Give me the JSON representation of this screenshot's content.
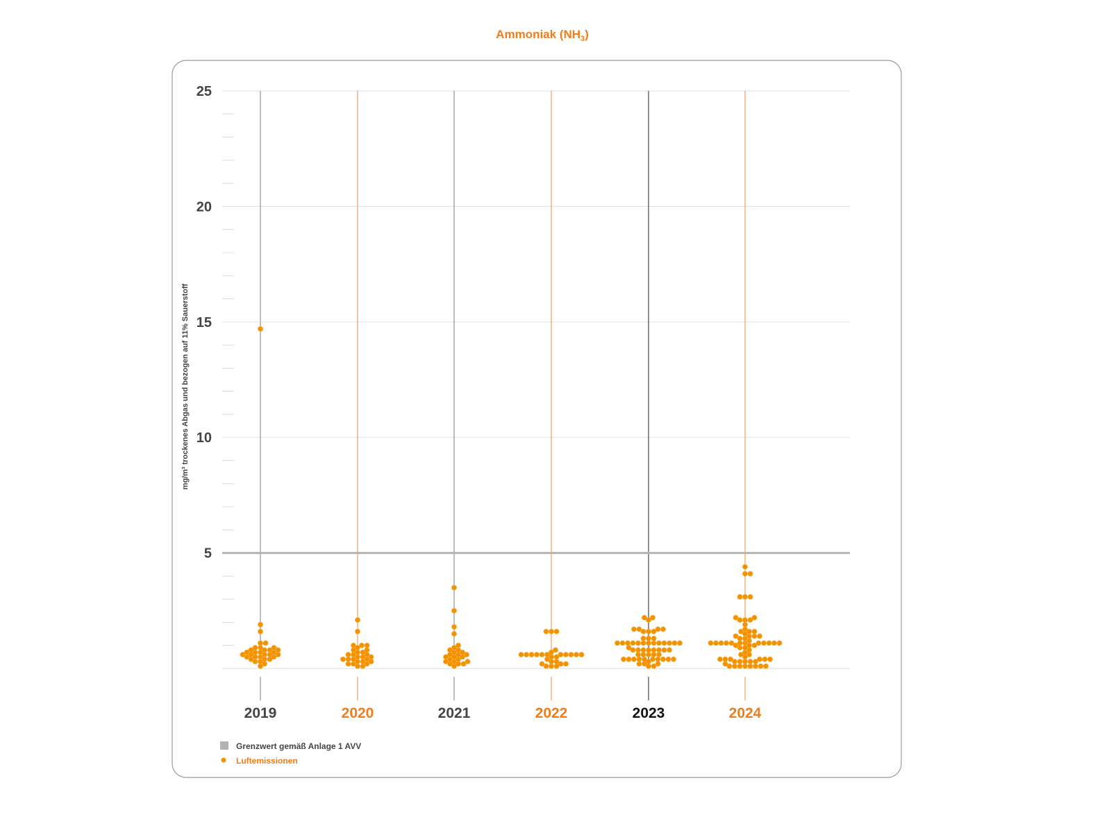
{
  "title": "Ammoniak (NH",
  "title_sub": "3",
  "title_close": ")",
  "colors": {
    "accent": "#f07d1a",
    "dot": "#f39200",
    "limit": "#b3b3b3",
    "grid": "#e3e3e3"
  },
  "chart_data": {
    "type": "scatter",
    "subtype": "beeswarm",
    "title": "Ammoniak (NH3)",
    "ylabel": "mg/m³ trockenes Abgas und bezogen auf 11% Sauerstoff",
    "ylim": [
      0,
      25
    ],
    "yticks": [
      5,
      10,
      15,
      20,
      25
    ],
    "grid": true,
    "limit_value": 5,
    "categories": [
      "2019",
      "2020",
      "2021",
      "2022",
      "2023",
      "2024"
    ],
    "category_styles": [
      "gray",
      "orange",
      "gray",
      "orange",
      "dark",
      "orange"
    ],
    "series": [
      {
        "name": "2019",
        "values": [
          14.7,
          1.9,
          1.6,
          1.1,
          1.1,
          0.9,
          0.9,
          0.9,
          0.8,
          0.8,
          0.8,
          0.8,
          0.7,
          0.7,
          0.7,
          0.7,
          0.6,
          0.6,
          0.6,
          0.6,
          0.6,
          0.5,
          0.5,
          0.5,
          0.5,
          0.4,
          0.4,
          0.4,
          0.3,
          0.3,
          0.2,
          0.1
        ]
      },
      {
        "name": "2020",
        "values": [
          2.1,
          1.6,
          1.0,
          1.0,
          1.0,
          0.9,
          0.8,
          0.8,
          0.7,
          0.7,
          0.6,
          0.6,
          0.6,
          0.5,
          0.5,
          0.5,
          0.4,
          0.4,
          0.4,
          0.4,
          0.3,
          0.3,
          0.3,
          0.2,
          0.2,
          0.2,
          0.1,
          0.1
        ]
      },
      {
        "name": "2021",
        "values": [
          3.5,
          2.5,
          1.8,
          1.5,
          1.0,
          0.9,
          0.8,
          0.8,
          0.7,
          0.7,
          0.6,
          0.6,
          0.6,
          0.5,
          0.5,
          0.5,
          0.4,
          0.4,
          0.3,
          0.3,
          0.3,
          0.2,
          0.2,
          0.2,
          0.1
        ]
      },
      {
        "name": "2022",
        "values": [
          1.6,
          1.6,
          1.6,
          0.8,
          0.7,
          0.6,
          0.6,
          0.6,
          0.6,
          0.6,
          0.6,
          0.6,
          0.6,
          0.6,
          0.6,
          0.6,
          0.5,
          0.5,
          0.4,
          0.3,
          0.3,
          0.2,
          0.2,
          0.2,
          0.1,
          0.1,
          0.1
        ]
      },
      {
        "name": "2023",
        "values": [
          2.2,
          2.2,
          2.1,
          1.7,
          1.7,
          1.7,
          1.7,
          1.6,
          1.6,
          1.6,
          1.3,
          1.3,
          1.3,
          1.1,
          1.1,
          1.1,
          1.1,
          1.1,
          1.1,
          1.1,
          1.1,
          1.1,
          1.1,
          1.1,
          1.1,
          1.1,
          0.9,
          0.8,
          0.8,
          0.8,
          0.8,
          0.8,
          0.8,
          0.8,
          0.8,
          0.6,
          0.6,
          0.6,
          0.6,
          0.6,
          0.4,
          0.4,
          0.4,
          0.4,
          0.4,
          0.4,
          0.4,
          0.4,
          0.4,
          0.4,
          0.3,
          0.2,
          0.2,
          0.2,
          0.1,
          0.1
        ]
      },
      {
        "name": "2024",
        "values": [
          4.4,
          4.1,
          4.1,
          3.1,
          3.1,
          3.1,
          2.2,
          2.2,
          2.1,
          2.1,
          2.1,
          1.9,
          1.7,
          1.6,
          1.6,
          1.6,
          1.5,
          1.4,
          1.4,
          1.4,
          1.4,
          1.3,
          1.3,
          1.2,
          1.1,
          1.1,
          1.1,
          1.1,
          1.1,
          1.1,
          1.1,
          1.1,
          1.1,
          1.1,
          1.1,
          1.1,
          1.0,
          1.0,
          1.0,
          0.9,
          0.9,
          0.8,
          0.7,
          0.6,
          0.6,
          0.5,
          0.4,
          0.4,
          0.4,
          0.4,
          0.4,
          0.4,
          0.3,
          0.3,
          0.3,
          0.3,
          0.3,
          0.2,
          0.1,
          0.1,
          0.1,
          0.1,
          0.1,
          0.1,
          0.1,
          0.1
        ]
      }
    ],
    "legend": [
      {
        "label": "Grenzwert gemäß Anlage 1 AVV",
        "marker": "square"
      },
      {
        "label": "Luftemissionen",
        "marker": "dot"
      }
    ],
    "legend_position": "bottom-left"
  }
}
